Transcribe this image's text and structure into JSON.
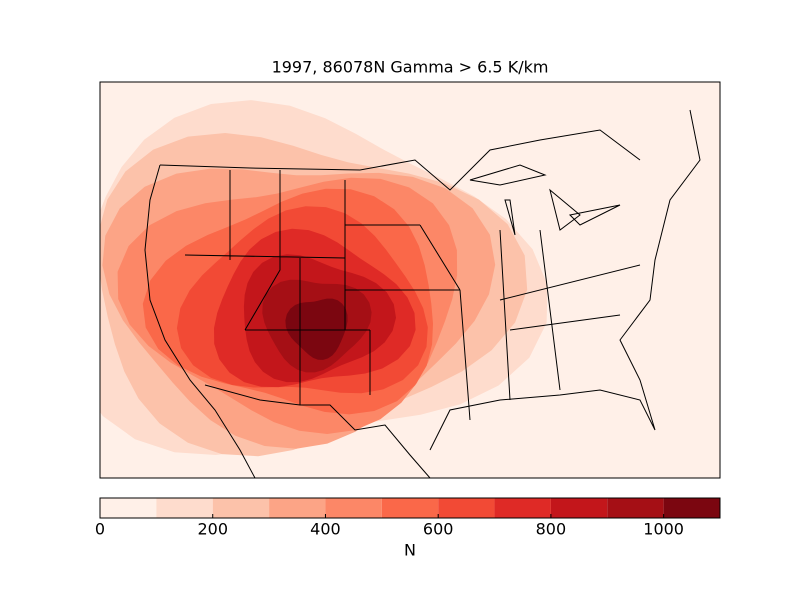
{
  "chart_data": {
    "type": "contour-map",
    "title": "1997, 86078N Gamma > 6.5 K/km",
    "colorbar": {
      "label": "N",
      "lim": [
        0,
        1100
      ],
      "ticks": [
        0,
        200,
        400,
        600,
        800,
        1000
      ],
      "levels": [
        0,
        100,
        200,
        300,
        400,
        500,
        600,
        700,
        800,
        900,
        1000,
        1100
      ],
      "colors": [
        "#fff0e8",
        "#fedccd",
        "#fcc2aa",
        "#fca486",
        "#fc8767",
        "#fa6849",
        "#f24a35",
        "#df2a26",
        "#c3161b",
        "#a50f15",
        "#7b0610"
      ]
    }
  }
}
